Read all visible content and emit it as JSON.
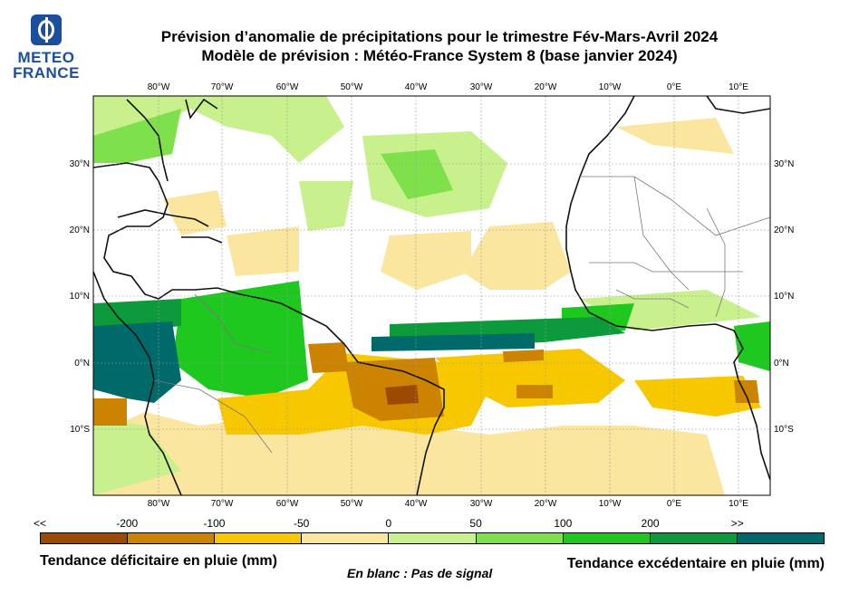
{
  "logo": {
    "line1": "METEO",
    "line2": "FRANCE"
  },
  "title": {
    "line1": "Prévision d’anomalie de précipitations pour le trimestre Fév-Mars-Avril 2024",
    "line2": "Modèle de prévision : Météo-France System 8 (base janvier 2024)"
  },
  "map": {
    "lon_labels": [
      "80°W",
      "70°W",
      "60°W",
      "50°W",
      "40°W",
      "30°W",
      "20°W",
      "10°W",
      "0°E",
      "10°E"
    ],
    "lat_labels": [
      "30°N",
      "20°N",
      "10°N",
      "0°N",
      "10°S"
    ],
    "lon_range": [
      -90,
      14
    ],
    "lat_range": [
      -20,
      40
    ]
  },
  "colorbar": {
    "labels": [
      "<<",
      "-200",
      "-100",
      "-50",
      "0",
      "50",
      "100",
      "200",
      ">>"
    ],
    "colors": [
      "#9c4a00",
      "#cc8400",
      "#f7c800",
      "#fbe6a0",
      "#c8f08c",
      "#7ee04a",
      "#1fc81f",
      "#0c9a3c",
      "#006a6a"
    ]
  },
  "legend": {
    "deficit": "Tendance déficitaire en pluie (mm)",
    "excess": "Tendance excédentaire en pluie (mm)",
    "no_signal": "En blanc : Pas de signal"
  }
}
